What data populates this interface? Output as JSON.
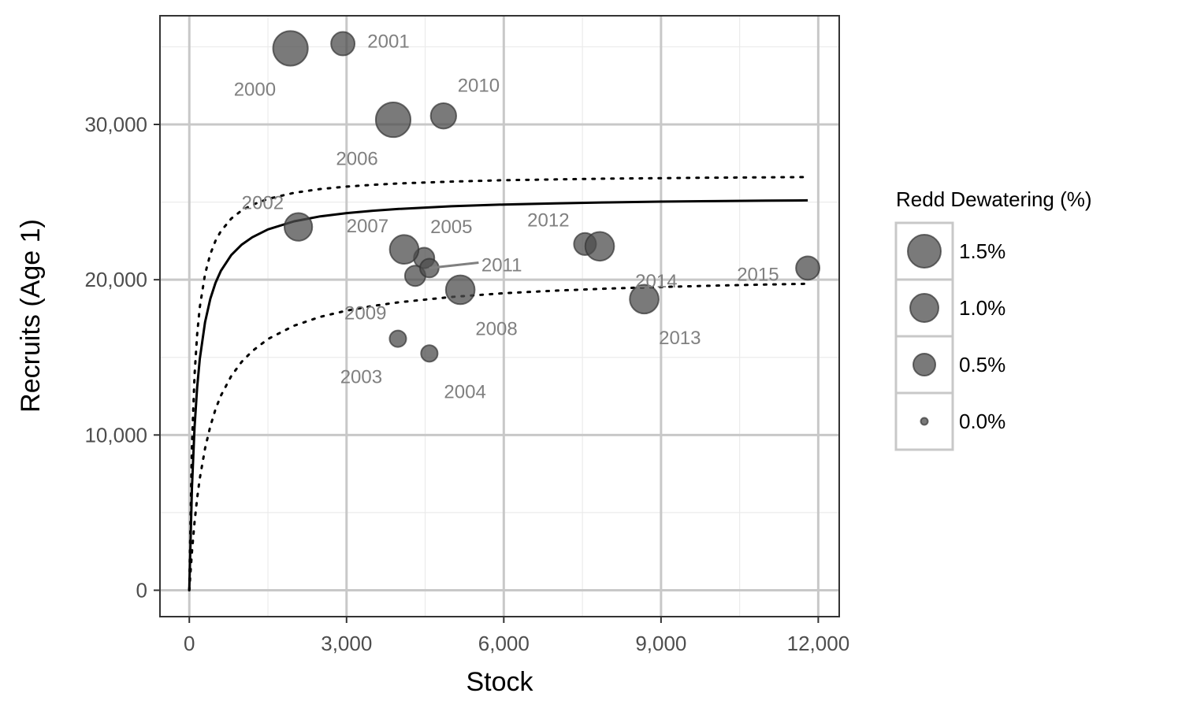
{
  "chart_data": {
    "type": "scatter",
    "xlabel": "Stock",
    "ylabel": "Recruits (Age 1)",
    "xlim": [
      -560,
      12400
    ],
    "ylim": [
      -1700,
      37000
    ],
    "x_ticks": [
      0,
      3000,
      6000,
      9000,
      12000
    ],
    "x_tick_labels": [
      "0",
      "3,000",
      "6,000",
      "9,000",
      "12,000"
    ],
    "y_ticks": [
      0,
      10000,
      20000,
      30000
    ],
    "y_tick_labels": [
      "0",
      "10,000",
      "20,000",
      "30,000"
    ],
    "x_minor": [
      1500,
      4500,
      7500,
      10500
    ],
    "y_minor": [
      5000,
      15000,
      25000,
      35000
    ],
    "grid": true,
    "point_color": "#4d4d4d",
    "label_color": "#808080",
    "points": [
      {
        "label": "2000",
        "x": 1930,
        "y": 34900,
        "dewatering": 1.7,
        "lx": 1250,
        "ly": 32250
      },
      {
        "label": "2001",
        "x": 2930,
        "y": 35200,
        "dewatering": 0.6,
        "lx": 3800,
        "ly": 35350
      },
      {
        "label": "2002",
        "x": 2080,
        "y": 23400,
        "dewatering": 0.95,
        "lx": 1400,
        "ly": 24950
      },
      {
        "label": "2003",
        "x": 3980,
        "y": 16200,
        "dewatering": 0.2,
        "lx": 3280,
        "ly": 13750
      },
      {
        "label": "2004",
        "x": 4580,
        "y": 15250,
        "dewatering": 0.2,
        "lx": 5260,
        "ly": 12770
      },
      {
        "label": "2005",
        "x": 4480,
        "y": 21400,
        "dewatering": 0.4,
        "lx": 5000,
        "ly": 23400
      },
      {
        "label": "2006",
        "x": 3890,
        "y": 30300,
        "dewatering": 1.7,
        "lx": 3200,
        "ly": 27800
      },
      {
        "label": "2007",
        "x": 4100,
        "y": 21950,
        "dewatering": 1.05,
        "lx": 3400,
        "ly": 23450
      },
      {
        "label": "2008",
        "x": 5170,
        "y": 19350,
        "dewatering": 1.05,
        "lx": 5860,
        "ly": 16850
      },
      {
        "label": "2009",
        "x": 4310,
        "y": 20250,
        "dewatering": 0.4,
        "lx": 3360,
        "ly": 17850
      },
      {
        "label": "2010",
        "x": 4850,
        "y": 30550,
        "dewatering": 0.75,
        "lx": 5520,
        "ly": 32500
      },
      {
        "label": "2011",
        "x": 4580,
        "y": 20750,
        "dewatering": 0.3,
        "lx": 5960,
        "ly": 20950,
        "line_to": [
          5520,
          21100
        ]
      },
      {
        "label": "2012",
        "x": 7550,
        "y": 22300,
        "dewatering": 0.5,
        "lx": 6850,
        "ly": 23850
      },
      {
        "label": "2013",
        "x": 8680,
        "y": 18750,
        "dewatering": 1.05,
        "lx": 9360,
        "ly": 16250
      },
      {
        "label": "2014",
        "x": 7830,
        "y": 22150,
        "dewatering": 1.05,
        "lx": 8910,
        "ly": 19900
      },
      {
        "label": "2015",
        "x": 11800,
        "y": 20750,
        "dewatering": 0.6,
        "lx": 10850,
        "ly": 20350
      }
    ],
    "series": [
      {
        "style": "solid",
        "x": [
          0,
          50,
          100,
          150,
          200,
          300,
          400,
          500,
          600,
          800,
          1000,
          1200,
          1500,
          2000,
          2500,
          3000,
          3500,
          4000,
          5000,
          6000,
          7000,
          8000,
          9000,
          10000,
          11000,
          11800
        ],
        "y": [
          0,
          6620,
          10510,
          13070,
          14880,
          17260,
          18770,
          19800,
          20560,
          21590,
          22260,
          22730,
          23240,
          23760,
          24080,
          24290,
          24440,
          24560,
          24730,
          24840,
          24920,
          24980,
          25030,
          25060,
          25090,
          25110
        ]
      },
      {
        "style": "dotted",
        "x": [
          0,
          50,
          100,
          150,
          200,
          300,
          400,
          500,
          600,
          800,
          1000,
          1200,
          1500,
          2000,
          2500,
          3000,
          3500,
          4000,
          5000,
          6000,
          7000,
          8000,
          9000,
          10000,
          11000,
          11800
        ],
        "y": [
          0,
          9400,
          13870,
          16490,
          18220,
          20360,
          21650,
          22510,
          23120,
          23940,
          24460,
          24820,
          25200,
          25600,
          25840,
          26000,
          26110,
          26200,
          26320,
          26410,
          26460,
          26510,
          26540,
          26570,
          26590,
          26610
        ]
      },
      {
        "style": "dotted",
        "x": [
          0,
          50,
          100,
          150,
          200,
          300,
          400,
          500,
          600,
          800,
          1000,
          1200,
          1500,
          2000,
          2500,
          3000,
          3500,
          4000,
          5000,
          6000,
          7000,
          8000,
          9000,
          10000,
          11000,
          11800
        ],
        "y": [
          0,
          2470,
          4400,
          5930,
          7190,
          9130,
          10560,
          11660,
          12520,
          13800,
          14720,
          15400,
          16180,
          17040,
          17610,
          18010,
          18310,
          18550,
          18890,
          19130,
          19300,
          19430,
          19530,
          19620,
          19690,
          19740
        ]
      }
    ],
    "legend": {
      "title": "Redd Dewatering (%)",
      "placement": "right",
      "entries": [
        {
          "label": "1.5%",
          "value": 1.5
        },
        {
          "label": "1.0%",
          "value": 1.0
        },
        {
          "label": "0.5%",
          "value": 0.5
        },
        {
          "label": "0.0%",
          "value": 0.0
        }
      ]
    }
  }
}
